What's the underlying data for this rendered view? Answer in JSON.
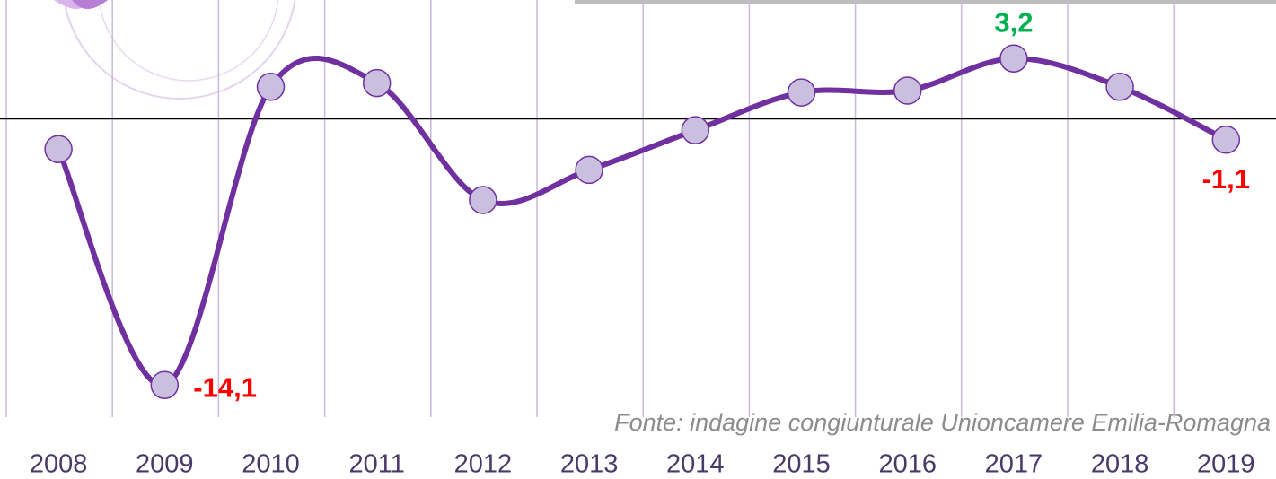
{
  "chart_data": {
    "type": "line",
    "categories": [
      "2008",
      "2009",
      "2010",
      "2011",
      "2012",
      "2013",
      "2014",
      "2015",
      "2016",
      "2017",
      "2018",
      "2019"
    ],
    "values": [
      -1.6,
      -14.1,
      1.7,
      1.9,
      -4.3,
      -2.7,
      -0.6,
      1.4,
      1.5,
      3.2,
      1.7,
      -1.1
    ],
    "value_labels": [
      null,
      "-14,1",
      null,
      null,
      null,
      null,
      null,
      null,
      null,
      "3,2",
      null,
      "-1,1"
    ],
    "value_label_colors": [
      null,
      "#ff0000",
      null,
      null,
      null,
      null,
      null,
      null,
      null,
      "#00b050",
      null,
      "#ff0000"
    ],
    "color": "#7030a0",
    "marker_color": "#cbbfe0",
    "grid_color": "#c8b8dc",
    "ylim": [
      -15.8,
      6.3
    ],
    "source": "Fonte: indagine congiunturale Unioncamere Emilia-Romagna"
  }
}
